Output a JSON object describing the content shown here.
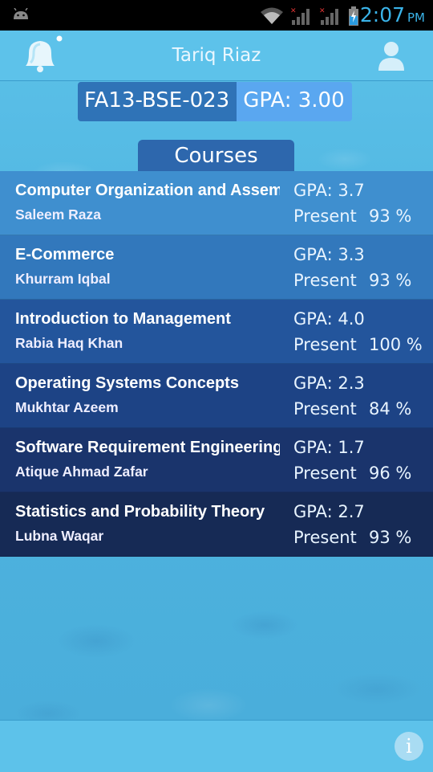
{
  "status_bar": {
    "time": "2:07",
    "ampm": "PM",
    "icons": [
      "android-icon",
      "wifi-icon",
      "signal-icon",
      "signal-icon",
      "battery-icon"
    ]
  },
  "header": {
    "title": "Tariq Riaz",
    "left_icon": "bell-icon",
    "right_icon": "profile-icon"
  },
  "student": {
    "id": "FA13-BSE-023",
    "gpa_label": "GPA: 3.00"
  },
  "courses_tab": "Courses",
  "courses": [
    {
      "name": "Computer Organization and Assembly Language",
      "teacher": "Saleem Raza",
      "gpa": "GPA: 3.7",
      "present_label": "Present",
      "present": "93 %",
      "bg": "#3f8fcf"
    },
    {
      "name": "E-Commerce",
      "teacher": "Khurram Iqbal",
      "gpa": "GPA: 3.3",
      "present_label": "Present",
      "present": "93 %",
      "bg": "#3278bc"
    },
    {
      "name": "Introduction to Management",
      "teacher": "Rabia Haq Khan",
      "gpa": "GPA: 4.0",
      "present_label": "Present",
      "present": "100 %",
      "bg": "#23559c"
    },
    {
      "name": "Operating Systems Concepts",
      "teacher": "Mukhtar Azeem",
      "gpa": "GPA: 2.3",
      "present_label": "Present",
      "present": "84 %",
      "bg": "#1d4385"
    },
    {
      "name": "Software Requirement Engineering",
      "teacher": "Atique Ahmad Zafar",
      "gpa": "GPA: 1.7",
      "present_label": "Present",
      "present": "96 %",
      "bg": "#1a346c"
    },
    {
      "name": "Statistics and Probability Theory",
      "teacher": "Lubna Waqar",
      "gpa": "GPA: 2.7",
      "present_label": "Present",
      "present": "93 %",
      "bg": "#162a55"
    }
  ],
  "bottom_bar": {
    "info_icon_glyph": "i"
  }
}
